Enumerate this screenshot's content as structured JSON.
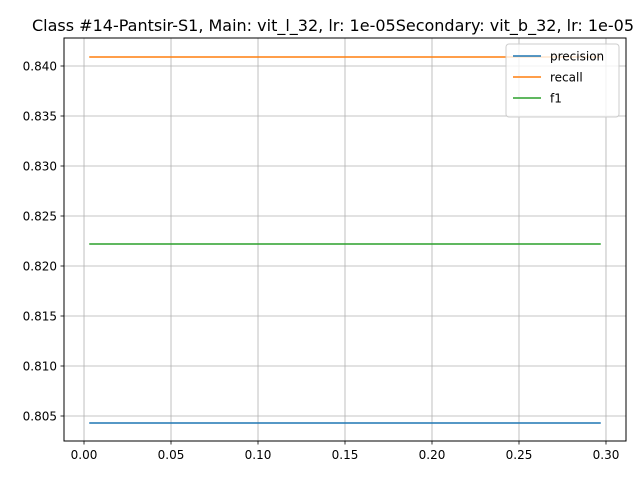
{
  "chart_data": {
    "type": "line",
    "title": "Class #14-Pantsir-S1, Main: vit_l_32, lr: 1e-05Secondary: vit_b_32, lr: 1e-05",
    "xlabel": "",
    "ylabel": "",
    "xlim": [
      -0.0115,
      0.3115
    ],
    "ylim": [
      0.8025,
      0.8428
    ],
    "x_ticks": [
      0.0,
      0.05,
      0.1,
      0.15,
      0.2,
      0.25,
      0.3
    ],
    "x_tick_labels": [
      "0.00",
      "0.05",
      "0.10",
      "0.15",
      "0.20",
      "0.25",
      "0.30"
    ],
    "y_ticks": [
      0.805,
      0.81,
      0.815,
      0.82,
      0.825,
      0.83,
      0.835,
      0.84
    ],
    "y_tick_labels": [
      "0.805",
      "0.810",
      "0.815",
      "0.820",
      "0.825",
      "0.830",
      "0.835",
      "0.840"
    ],
    "grid": true,
    "legend_position": "top-right",
    "series": [
      {
        "name": "precision",
        "color": "#1f77b4",
        "x": [
          0.003,
          0.297
        ],
        "y": [
          0.8043,
          0.8043
        ]
      },
      {
        "name": "recall",
        "color": "#ff7f0e",
        "x": [
          0.003,
          0.297
        ],
        "y": [
          0.8409,
          0.8409
        ]
      },
      {
        "name": "f1",
        "color": "#2ca02c",
        "x": [
          0.003,
          0.297
        ],
        "y": [
          0.8222,
          0.8222
        ]
      }
    ]
  }
}
